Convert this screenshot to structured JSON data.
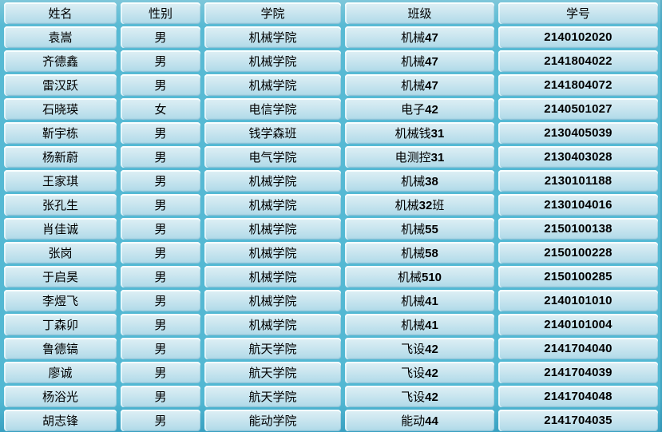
{
  "colors": {
    "cell_fill_top": "#dff0f5",
    "cell_fill_bottom": "#add8e7",
    "grid_gap_teal": "#52b8d3",
    "text": "#000000"
  },
  "table": {
    "columns": [
      {
        "label": "姓名"
      },
      {
        "label": "性别"
      },
      {
        "label": "学院"
      },
      {
        "label": "班级"
      },
      {
        "label": "学号"
      }
    ],
    "rows": [
      {
        "name": "袁嵩",
        "gender": "男",
        "college": "机械学院",
        "class_prefix": "机械",
        "class_num": "47",
        "class_suffix": "",
        "student_id": "2140102020"
      },
      {
        "name": "齐德鑫",
        "gender": "男",
        "college": "机械学院",
        "class_prefix": "机械",
        "class_num": "47",
        "class_suffix": "",
        "student_id": "2141804022"
      },
      {
        "name": "雷汉跃",
        "gender": "男",
        "college": "机械学院",
        "class_prefix": "机械",
        "class_num": "47",
        "class_suffix": "",
        "student_id": "2141804072"
      },
      {
        "name": "石晓瑛",
        "gender": "女",
        "college": "电信学院",
        "class_prefix": "电子",
        "class_num": "42",
        "class_suffix": "",
        "student_id": "2140501027"
      },
      {
        "name": "靳宇栋",
        "gender": "男",
        "college": "钱学森班",
        "class_prefix": "机械钱",
        "class_num": "31",
        "class_suffix": "",
        "student_id": "2130405039"
      },
      {
        "name": "杨新蔚",
        "gender": "男",
        "college": "电气学院",
        "class_prefix": "电测控",
        "class_num": "31",
        "class_suffix": "",
        "student_id": "2130403028"
      },
      {
        "name": "王家琪",
        "gender": "男",
        "college": "机械学院",
        "class_prefix": "机械",
        "class_num": "38",
        "class_suffix": "",
        "student_id": "2130101188"
      },
      {
        "name": "张孔生",
        "gender": "男",
        "college": "机械学院",
        "class_prefix": "机械",
        "class_num": "32",
        "class_suffix": "班",
        "student_id": "2130104016"
      },
      {
        "name": "肖佳诚",
        "gender": "男",
        "college": "机械学院",
        "class_prefix": "机械",
        "class_num": "55",
        "class_suffix": "",
        "student_id": "2150100138"
      },
      {
        "name": "张岗",
        "gender": "男",
        "college": "机械学院",
        "class_prefix": "机械",
        "class_num": "58",
        "class_suffix": "",
        "student_id": "2150100228"
      },
      {
        "name": "于启昊",
        "gender": "男",
        "college": "机械学院",
        "class_prefix": "机械",
        "class_num": "510",
        "class_suffix": "",
        "student_id": "2150100285"
      },
      {
        "name": "李煜飞",
        "gender": "男",
        "college": "机械学院",
        "class_prefix": "机械",
        "class_num": "41",
        "class_suffix": "",
        "student_id": "2140101010"
      },
      {
        "name": "丁森卯",
        "gender": "男",
        "college": "机械学院",
        "class_prefix": "机械",
        "class_num": "41",
        "class_suffix": "",
        "student_id": "2140101004"
      },
      {
        "name": "鲁德镐",
        "gender": "男",
        "college": "航天学院",
        "class_prefix": "飞设",
        "class_num": "42",
        "class_suffix": "",
        "student_id": "2141704040"
      },
      {
        "name": "廖诚",
        "gender": "男",
        "college": "航天学院",
        "class_prefix": "飞设",
        "class_num": "42",
        "class_suffix": "",
        "student_id": "2141704039"
      },
      {
        "name": "杨浴光",
        "gender": "男",
        "college": "航天学院",
        "class_prefix": "飞设",
        "class_num": "42",
        "class_suffix": "",
        "student_id": "2141704048"
      },
      {
        "name": "胡志锋",
        "gender": "男",
        "college": "能动学院",
        "class_prefix": "能动",
        "class_num": "44",
        "class_suffix": "",
        "student_id": "2141704035"
      }
    ]
  }
}
